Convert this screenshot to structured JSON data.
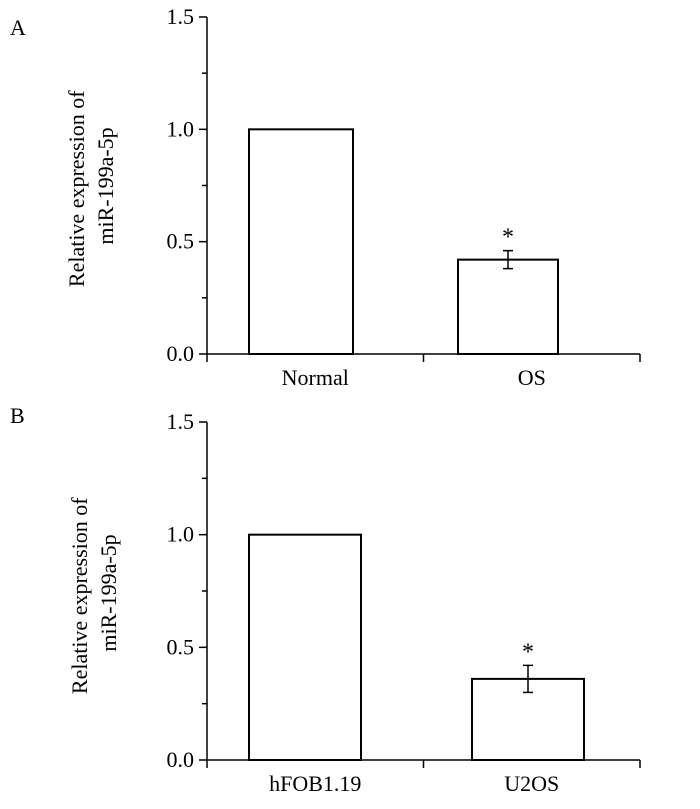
{
  "chart_data": [
    {
      "panel": "A",
      "type": "bar",
      "categories": [
        "Normal",
        "OS"
      ],
      "values": [
        1.0,
        0.42
      ],
      "errors": [
        null,
        0.04
      ],
      "annotations": [
        "",
        "*"
      ],
      "ylabel_lines": [
        "Relative expression of",
        "miR-199a-5p"
      ],
      "xlabel": "",
      "ylim": [
        0,
        1.5
      ],
      "yticks": [
        0.0,
        0.5,
        1.0,
        1.5
      ],
      "ytick_labels": [
        "0.0",
        "0.5",
        "1.0",
        "1.5"
      ],
      "grid": false,
      "bar_fill": "#ffffff",
      "bar_stroke": "#000000"
    },
    {
      "panel": "B",
      "type": "bar",
      "categories": [
        "hFOB1.19",
        "U2OS"
      ],
      "values": [
        1.0,
        0.36
      ],
      "errors": [
        null,
        0.06
      ],
      "annotations": [
        "",
        "*"
      ],
      "ylabel_lines": [
        "Relative expression of",
        "miR-199a-5p"
      ],
      "xlabel": "",
      "ylim": [
        0,
        1.5
      ],
      "yticks": [
        0.0,
        0.5,
        1.0,
        1.5
      ],
      "ytick_labels": [
        "0.0",
        "0.5",
        "1.0",
        "1.5"
      ],
      "grid": false,
      "bar_fill": "#ffffff",
      "bar_stroke": "#000000"
    }
  ]
}
